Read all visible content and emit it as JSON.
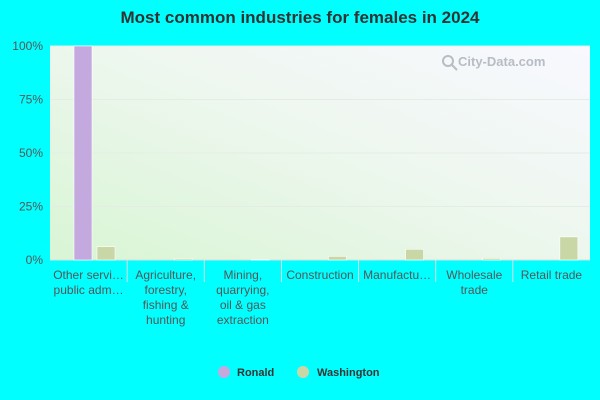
{
  "chart_data": {
    "type": "bar",
    "title": "Most common industries for females in 2024",
    "watermark": "City-Data.com",
    "categories": [
      [
        "Other servi…",
        "public adm…"
      ],
      [
        "Agriculture,",
        "forestry,",
        "fishing &",
        "hunting"
      ],
      [
        "Mining,",
        "quarrying,",
        "oil & gas",
        "extraction"
      ],
      [
        "Construction"
      ],
      [
        "Manufactu…"
      ],
      [
        "Wholesale",
        "trade"
      ],
      [
        "Retail trade"
      ]
    ],
    "series": [
      {
        "name": "Ronald",
        "color": "#c3a9de",
        "values": [
          100,
          0,
          0,
          0,
          0,
          0,
          0
        ]
      },
      {
        "name": "Washington",
        "color": "#c9d6a6",
        "values": [
          6.2,
          0.7,
          0.2,
          1.7,
          5.0,
          0.8,
          10.8
        ]
      }
    ],
    "yticks": [
      "0%",
      "25%",
      "50%",
      "75%",
      "100%"
    ],
    "ylim": [
      0,
      100
    ],
    "grid": true,
    "legend_position": "bottom"
  }
}
